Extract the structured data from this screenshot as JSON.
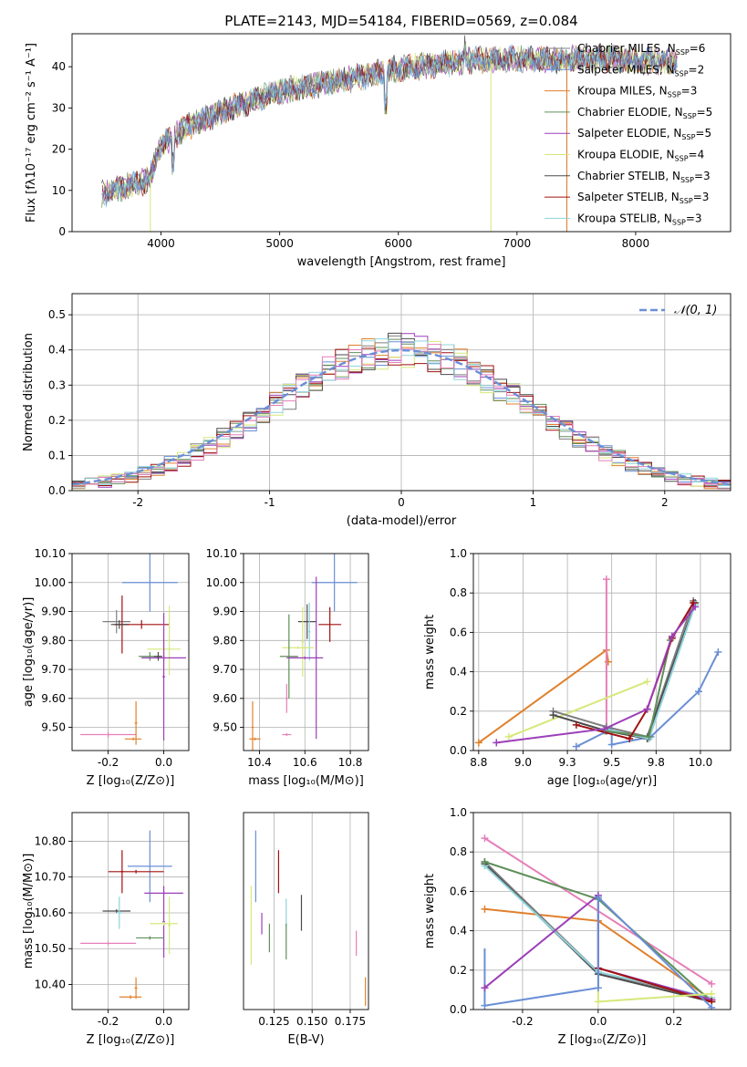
{
  "figure": {
    "title": "PLATE=2143, MJD=54184, FIBERID=0569, z=0.084"
  },
  "colors": {
    "Chabrier MILES": "#7f7f7f",
    "Salpeter MILES": "#6a8fd6",
    "Kroupa MILES": "#e0802c",
    "Chabrier ELODIE": "#5f8f5a",
    "Salpeter ELODIE": "#9c3fb8",
    "Kroupa ELODIE": "#d6e87a",
    "Chabrier STELIB": "#4a4a4a",
    "Salpeter STELIB": "#a01010",
    "Kroupa STELIB": "#8fd3dc",
    "Salpeter MILES mw": "#e67fb8"
  },
  "chart_data": [
    {
      "id": "spectrum",
      "type": "line",
      "xlabel": "wavelength [Angstrom, rest frame]",
      "ylabel": "Flux [fλ10⁻¹⁷ erg cm⁻² s⁻¹ A⁻¹]",
      "xlim": [
        3250,
        8800
      ],
      "ylim": [
        0,
        48
      ],
      "xticks": [
        4000,
        5000,
        6000,
        7000,
        8000
      ],
      "yticks": [
        0,
        10,
        20,
        30,
        40
      ],
      "continuum": [
        [
          3500,
          9
        ],
        [
          3700,
          11
        ],
        [
          3900,
          12.5
        ],
        [
          4000,
          21
        ],
        [
          4200,
          25
        ],
        [
          4500,
          29
        ],
        [
          4800,
          32
        ],
        [
          5000,
          34
        ],
        [
          5300,
          35.5
        ],
        [
          5600,
          37
        ],
        [
          6000,
          39.5
        ],
        [
          6300,
          40.5
        ],
        [
          6600,
          41.5
        ],
        [
          7000,
          42
        ],
        [
          7300,
          41.5
        ],
        [
          7500,
          42
        ],
        [
          7800,
          42
        ],
        [
          8000,
          41.5
        ],
        [
          8300,
          41.5
        ]
      ],
      "legend": [
        {
          "label": "Chabrier MILES, N",
          "sub": "SSP",
          "val": "=6"
        },
        {
          "label": "Salpeter MILES, N",
          "sub": "SSP",
          "val": "=2"
        },
        {
          "label": "Kroupa MILES, N",
          "sub": "SSP",
          "val": "=3"
        },
        {
          "label": "Chabrier ELODIE, N",
          "sub": "SSP",
          "val": "=5"
        },
        {
          "label": "Salpeter ELODIE, N",
          "sub": "SSP",
          "val": "=5"
        },
        {
          "label": "Kroupa ELODIE, N",
          "sub": "SSP",
          "val": "=4"
        },
        {
          "label": "Chabrier STELIB, N",
          "sub": "SSP",
          "val": "=3"
        },
        {
          "label": "Salpeter STELIB, N",
          "sub": "SSP",
          "val": "=3"
        },
        {
          "label": "Kroupa STELIB, N",
          "sub": "SSP",
          "val": "=3"
        }
      ],
      "legend_placement": "right"
    },
    {
      "id": "residuals",
      "type": "line",
      "xlabel": "(data-model)/error",
      "ylabel": "Normed distribution",
      "xlim": [
        -2.5,
        2.5
      ],
      "ylim": [
        0,
        0.56
      ],
      "xticks": [
        -2,
        -1,
        0,
        1,
        2
      ],
      "yticks": [
        0.0,
        0.1,
        0.2,
        0.3,
        0.4,
        0.5
      ],
      "grid": true,
      "legend": "𝒩(0, 1)",
      "legend_placement": "top-right"
    },
    {
      "id": "age_vs_Z",
      "type": "scatter",
      "xlabel": "Z [log₁₀(Z/Z⊙)]",
      "ylabel": "age  [log₁₀(age/yr)]",
      "xlim": [
        -0.33,
        0.09
      ],
      "ylim": [
        9.42,
        10.1
      ],
      "xticks": [
        -0.2,
        0.0
      ],
      "yticks": [
        9.5,
        9.6,
        9.7,
        9.8,
        9.9,
        10.0,
        10.1
      ],
      "grid": true,
      "points": [
        {
          "x": -0.05,
          "y": 10.0,
          "ex": 0.1,
          "ey": 0.1,
          "c": "#6a8fd6"
        },
        {
          "x": -0.17,
          "y": 9.865,
          "ex": 0.05,
          "ey": 0.04,
          "c": "#7f7f7f"
        },
        {
          "x": -0.15,
          "y": 9.855,
          "ex": 0.025,
          "ey": 0.1,
          "c": "#a01010"
        },
        {
          "x": -0.08,
          "y": 9.855,
          "ex": 0.1,
          "ey": 0.015,
          "c": "#a01010"
        },
        {
          "x": -0.16,
          "y": 9.855,
          "ex": 0.03,
          "ey": 0.015,
          "c": "#4a4a4a"
        },
        {
          "x": 0.0,
          "y": 9.77,
          "ex": 0.06,
          "ey": 0.03,
          "c": "#d6e87a"
        },
        {
          "x": 0.02,
          "y": 9.8,
          "ex": 0.005,
          "ey": 0.12,
          "c": "#d6e87a"
        },
        {
          "x": -0.05,
          "y": 9.745,
          "ex": 0.04,
          "ey": 0.015,
          "c": "#5f8f5a"
        },
        {
          "x": 0.0,
          "y": 9.675,
          "ex": 0.005,
          "ey": 0.22,
          "c": "#9c3fb8"
        },
        {
          "x": 0.0,
          "y": 9.74,
          "ex": 0.08,
          "ey": 0.01,
          "c": "#9c3fb8"
        },
        {
          "x": -0.02,
          "y": 9.745,
          "ex": 0.015,
          "ey": 0.015,
          "c": "#4a4a4a"
        },
        {
          "x": -0.2,
          "y": 9.475,
          "ex": 0.1,
          "ey": 0.01,
          "c": "#e67fb8"
        },
        {
          "x": -0.1,
          "y": 9.515,
          "ex": 0.005,
          "ey": 0.075,
          "c": "#e0802c"
        },
        {
          "x": -0.11,
          "y": 9.46,
          "ex": 0.03,
          "ey": 0.005,
          "c": "#e0802c"
        }
      ]
    },
    {
      "id": "age_vs_mass",
      "type": "scatter",
      "xlabel": "mass [log₁₀(M/M⊙)]",
      "xlim": [
        10.33,
        10.88
      ],
      "ylim": [
        9.42,
        10.1
      ],
      "xticks": [
        10.4,
        10.6,
        10.8
      ],
      "yticks": [
        9.5,
        9.6,
        9.7,
        9.8,
        9.9,
        10.0,
        10.1
      ],
      "grid": true,
      "points": [
        {
          "x": 10.73,
          "y": 10.0,
          "ex": 0.1,
          "ey": 0.1,
          "c": "#6a8fd6"
        },
        {
          "x": 10.71,
          "y": 9.855,
          "ex": 0.05,
          "ey": 0.06,
          "c": "#a01010"
        },
        {
          "x": 10.61,
          "y": 9.865,
          "ex": 0.04,
          "ey": 0.06,
          "c": "#4a4a4a"
        },
        {
          "x": 10.62,
          "y": 9.83,
          "ex": 0.005,
          "ey": 0.1,
          "c": "#8fd3dc"
        },
        {
          "x": 10.57,
          "y": 9.775,
          "ex": 0.07,
          "ey": 0.005,
          "c": "#d6e87a"
        },
        {
          "x": 10.59,
          "y": 9.795,
          "ex": 0.005,
          "ey": 0.12,
          "c": "#d6e87a"
        },
        {
          "x": 10.53,
          "y": 9.745,
          "ex": 0.04,
          "ey": 0.145,
          "c": "#5f8f5a"
        },
        {
          "x": 10.65,
          "y": 9.74,
          "ex": 0.005,
          "ey": 0.28,
          "c": "#9c3fb8"
        },
        {
          "x": 10.6,
          "y": 9.74,
          "ex": 0.08,
          "ey": 0.005,
          "c": "#9c3fb8"
        },
        {
          "x": 10.52,
          "y": 9.6,
          "ex": 0.005,
          "ey": 0.05,
          "c": "#e67fb8"
        },
        {
          "x": 10.52,
          "y": 9.475,
          "ex": 0.02,
          "ey": 0.005,
          "c": "#e67fb8"
        },
        {
          "x": 10.37,
          "y": 9.5,
          "ex": 0.005,
          "ey": 0.09,
          "c": "#e0802c"
        },
        {
          "x": 10.38,
          "y": 9.46,
          "ex": 0.025,
          "ey": 0.005,
          "c": "#e0802c"
        }
      ]
    },
    {
      "id": "mw_vs_age",
      "type": "line",
      "xlabel": "age  [log₁₀(age/yr)]",
      "ylabel": "mass weight",
      "xlim": [
        8.72,
        10.17
      ],
      "ylim": [
        0,
        1
      ],
      "xticks": [
        8.75,
        9.0,
        9.25,
        9.5,
        9.75,
        10.0
      ],
      "yticks": [
        0.0,
        0.2,
        0.4,
        0.6,
        0.8,
        1.0
      ],
      "grid": true,
      "series": [
        {
          "c": "#e0802c",
          "pts": [
            [
              8.75,
              0.04
            ],
            [
              9.47,
              0.51
            ],
            [
              9.48,
              0.45
            ]
          ]
        },
        {
          "c": "#e67fb8",
          "pts": [
            [
              9.47,
              0.87
            ],
            [
              9.47,
              0.1
            ]
          ]
        },
        {
          "c": "#6a8fd6",
          "pts": [
            [
              9.3,
              0.02
            ],
            [
              9.5,
              0.11
            ],
            [
              9.5,
              0.03
            ],
            [
              9.72,
              0.07
            ],
            [
              9.99,
              0.3
            ],
            [
              10.1,
              0.5
            ]
          ]
        },
        {
          "c": "#d6e87a",
          "pts": [
            [
              8.92,
              0.07
            ],
            [
              9.7,
              0.35
            ]
          ]
        },
        {
          "c": "#7f7f7f",
          "pts": [
            [
              9.17,
              0.2
            ],
            [
              9.47,
              0.12
            ],
            [
              9.7,
              0.07
            ],
            [
              9.96,
              0.76
            ]
          ]
        },
        {
          "c": "#4a4a4a",
          "pts": [
            [
              9.17,
              0.18
            ],
            [
              9.47,
              0.1
            ],
            [
              9.7,
              0.06
            ],
            [
              9.97,
              0.75
            ]
          ]
        },
        {
          "c": "#8fd3dc",
          "pts": [
            [
              9.46,
              0.11
            ],
            [
              9.71,
              0.06
            ],
            [
              9.97,
              0.74
            ]
          ]
        },
        {
          "c": "#5f8f5a",
          "pts": [
            [
              9.46,
              0.1
            ],
            [
              9.71,
              0.07
            ],
            [
              9.83,
              0.56
            ]
          ]
        },
        {
          "c": "#a01010",
          "pts": [
            [
              9.3,
              0.13
            ],
            [
              9.6,
              0.06
            ],
            [
              9.7,
              0.21
            ],
            [
              9.84,
              0.57
            ],
            [
              9.96,
              0.75
            ]
          ]
        },
        {
          "c": "#9c3fb8",
          "pts": [
            [
              8.85,
              0.04
            ],
            [
              9.46,
              0.11
            ],
            [
              9.7,
              0.21
            ],
            [
              9.84,
              0.58
            ],
            [
              9.97,
              0.73
            ]
          ]
        }
      ]
    },
    {
      "id": "mass_vs_Z",
      "type": "scatter",
      "xlabel": "Z [log₁₀(Z/Z⊙)]",
      "ylabel": "mass [log₁₀(M/M⊙)]",
      "xlim": [
        -0.33,
        0.09
      ],
      "ylim": [
        10.33,
        10.88
      ],
      "xticks": [
        -0.2,
        0.0
      ],
      "yticks": [
        10.4,
        10.5,
        10.6,
        10.7,
        10.8
      ],
      "grid": true,
      "points": [
        {
          "x": -0.05,
          "y": 10.73,
          "ex": 0.08,
          "ey": 0.1,
          "c": "#6a8fd6"
        },
        {
          "x": -0.15,
          "y": 10.715,
          "ex": 0.005,
          "ey": 0.06,
          "c": "#a01010"
        },
        {
          "x": -0.1,
          "y": 10.715,
          "ex": 0.1,
          "ey": 0.005,
          "c": "#a01010"
        },
        {
          "x": -0.17,
          "y": 10.605,
          "ex": 0.05,
          "ey": 0.005,
          "c": "#4a4a4a"
        },
        {
          "x": -0.16,
          "y": 10.6,
          "ex": 0.01,
          "ey": 0.045,
          "c": "#8fd3dc"
        },
        {
          "x": 0.0,
          "y": 10.655,
          "ex": 0.07,
          "ey": 0.005,
          "c": "#9c3fb8"
        },
        {
          "x": 0.0,
          "y": 10.575,
          "ex": 0.005,
          "ey": 0.1,
          "c": "#9c3fb8"
        },
        {
          "x": 0.0,
          "y": 10.57,
          "ex": 0.05,
          "ey": 0.005,
          "c": "#d6e87a"
        },
        {
          "x": 0.02,
          "y": 10.565,
          "ex": 0.005,
          "ey": 0.08,
          "c": "#d6e87a"
        },
        {
          "x": -0.05,
          "y": 10.53,
          "ex": 0.05,
          "ey": 0.005,
          "c": "#5f8f5a"
        },
        {
          "x": -0.2,
          "y": 10.515,
          "ex": 0.1,
          "ey": 0.005,
          "c": "#e67fb8"
        },
        {
          "x": -0.1,
          "y": 10.39,
          "ex": 0.005,
          "ey": 0.03,
          "c": "#e0802c"
        },
        {
          "x": -0.12,
          "y": 10.365,
          "ex": 0.04,
          "ey": 0.005,
          "c": "#e0802c"
        }
      ]
    },
    {
      "id": "mass_vs_ebv",
      "type": "scatter",
      "xlabel": "E(B-V)",
      "xlim": [
        0.105,
        0.187
      ],
      "ylim": [
        10.33,
        10.88
      ],
      "xticks": [
        0.125,
        0.15,
        0.175
      ],
      "xtick_labels": [
        "0.125",
        "0.150",
        "0.175"
      ],
      "grid": true,
      "points": [
        {
          "x": 0.113,
          "y": 10.73,
          "ex": 0.0,
          "ey": 0.1,
          "c": "#6a8fd6"
        },
        {
          "x": 0.11,
          "y": 10.565,
          "ex": 0.0,
          "ey": 0.11,
          "c": "#d6e87a"
        },
        {
          "x": 0.117,
          "y": 10.57,
          "ex": 0.0,
          "ey": 0.03,
          "c": "#9c3fb8"
        },
        {
          "x": 0.122,
          "y": 10.53,
          "ex": 0.0,
          "ey": 0.04,
          "c": "#5f8f5a"
        },
        {
          "x": 0.128,
          "y": 10.715,
          "ex": 0.0,
          "ey": 0.06,
          "c": "#a01010"
        },
        {
          "x": 0.133,
          "y": 10.6,
          "ex": 0.0,
          "ey": 0.04,
          "c": "#8fd3dc"
        },
        {
          "x": 0.133,
          "y": 10.52,
          "ex": 0.0,
          "ey": 0.05,
          "c": "#5f8f5a"
        },
        {
          "x": 0.143,
          "y": 10.6,
          "ex": 0.0,
          "ey": 0.05,
          "c": "#4a4a4a"
        },
        {
          "x": 0.179,
          "y": 10.515,
          "ex": 0.0,
          "ey": 0.035,
          "c": "#e67fb8"
        },
        {
          "x": 0.185,
          "y": 10.38,
          "ex": 0.0,
          "ey": 0.04,
          "c": "#e0802c"
        }
      ]
    },
    {
      "id": "mw_vs_Z",
      "type": "line",
      "xlabel": "Z [log₁₀(Z/Z⊙)]",
      "ylabel": "mass weight",
      "xlim": [
        -0.33,
        0.35
      ],
      "ylim": [
        0,
        1
      ],
      "xticks": [
        -0.2,
        0.0,
        0.2
      ],
      "yticks": [
        0.0,
        0.2,
        0.4,
        0.6,
        0.8,
        1.0
      ],
      "grid": true,
      "series": [
        {
          "c": "#e67fb8",
          "pts": [
            [
              -0.3,
              0.87
            ],
            [
              0.3,
              0.13
            ]
          ]
        },
        {
          "c": "#e0802c",
          "pts": [
            [
              -0.3,
              0.51
            ],
            [
              0.0,
              0.45
            ],
            [
              0.3,
              0.05
            ]
          ]
        },
        {
          "c": "#7f7f7f",
          "pts": [
            [
              -0.3,
              0.75
            ],
            [
              0.0,
              0.19
            ],
            [
              0.3,
              0.05
            ]
          ]
        },
        {
          "c": "#4a4a4a",
          "pts": [
            [
              -0.3,
              0.74
            ],
            [
              0.0,
              0.18
            ],
            [
              0.3,
              0.04
            ]
          ]
        },
        {
          "c": "#8fd3dc",
          "pts": [
            [
              -0.3,
              0.73
            ],
            [
              0.0,
              0.19
            ],
            [
              0.3,
              0.06
            ]
          ]
        },
        {
          "c": "#5f8f5a",
          "pts": [
            [
              -0.3,
              0.75
            ],
            [
              0.0,
              0.56
            ],
            [
              0.3,
              0.04
            ]
          ]
        },
        {
          "c": "#9c3fb8",
          "pts": [
            [
              -0.3,
              0.11
            ],
            [
              0.0,
              0.58
            ],
            [
              0.0,
              0.21
            ],
            [
              0.3,
              0.05
            ]
          ]
        },
        {
          "c": "#a01010",
          "pts": [
            [
              0.0,
              0.21
            ],
            [
              0.3,
              0.04
            ]
          ]
        },
        {
          "c": "#6a8fd6",
          "pts": [
            [
              -0.3,
              0.02
            ],
            [
              0.0,
              0.11
            ],
            [
              0.0,
              0.57
            ],
            [
              0.3,
              0.01
            ]
          ]
        },
        {
          "c": "#d6e87a",
          "pts": [
            [
              0.0,
              0.04
            ],
            [
              0.3,
              0.08
            ]
          ]
        }
      ],
      "vlines": [
        {
          "x": -0.3,
          "y0": 0.02,
          "y1": 0.31,
          "c": "#6a8fd6"
        },
        {
          "x": 0.0,
          "y0": 0.04,
          "y1": 0.57,
          "c": "#d6e87a"
        },
        {
          "x": 0.0,
          "y0": 0.21,
          "y1": 0.58,
          "c": "#9c3fb8"
        }
      ]
    }
  ]
}
